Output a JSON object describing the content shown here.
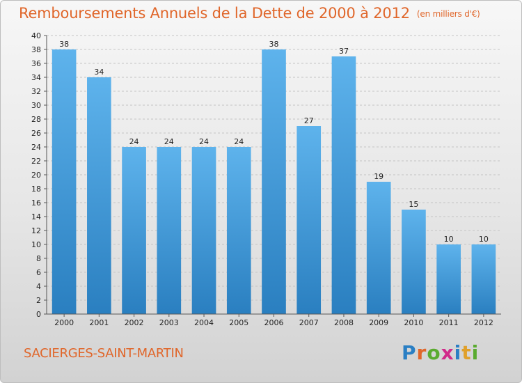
{
  "header": {
    "title": "Remboursements Annuels de la Dette de 2000 à 2012",
    "unit": "(en milliers d'€)"
  },
  "footer": {
    "commune": "SACIERGES-SAINT-MARTIN",
    "logo_letters": [
      "P",
      "r",
      "o",
      "x",
      "i",
      "t",
      "i"
    ],
    "logo_colors": [
      "#2a7fc4",
      "#e0662a",
      "#5aab2f",
      "#d12a8a",
      "#2a7fc4",
      "#e0a02a",
      "#5aab2f"
    ]
  },
  "colors": {
    "title": "#e0662a",
    "bar_top": "#5eb3ec",
    "bar_bottom": "#2a7fc0",
    "grid": "#c4c4c4",
    "axis": "#555555"
  },
  "chart_data": {
    "type": "bar",
    "categories": [
      "2000",
      "2001",
      "2002",
      "2003",
      "2004",
      "2005",
      "2006",
      "2007",
      "2008",
      "2009",
      "2010",
      "2011",
      "2012"
    ],
    "values": [
      38,
      34,
      24,
      24,
      24,
      24,
      38,
      27,
      37,
      19,
      15,
      10,
      10
    ],
    "ylim": [
      0,
      40
    ],
    "ytick_step": 2,
    "grid": true,
    "legend": "none"
  }
}
